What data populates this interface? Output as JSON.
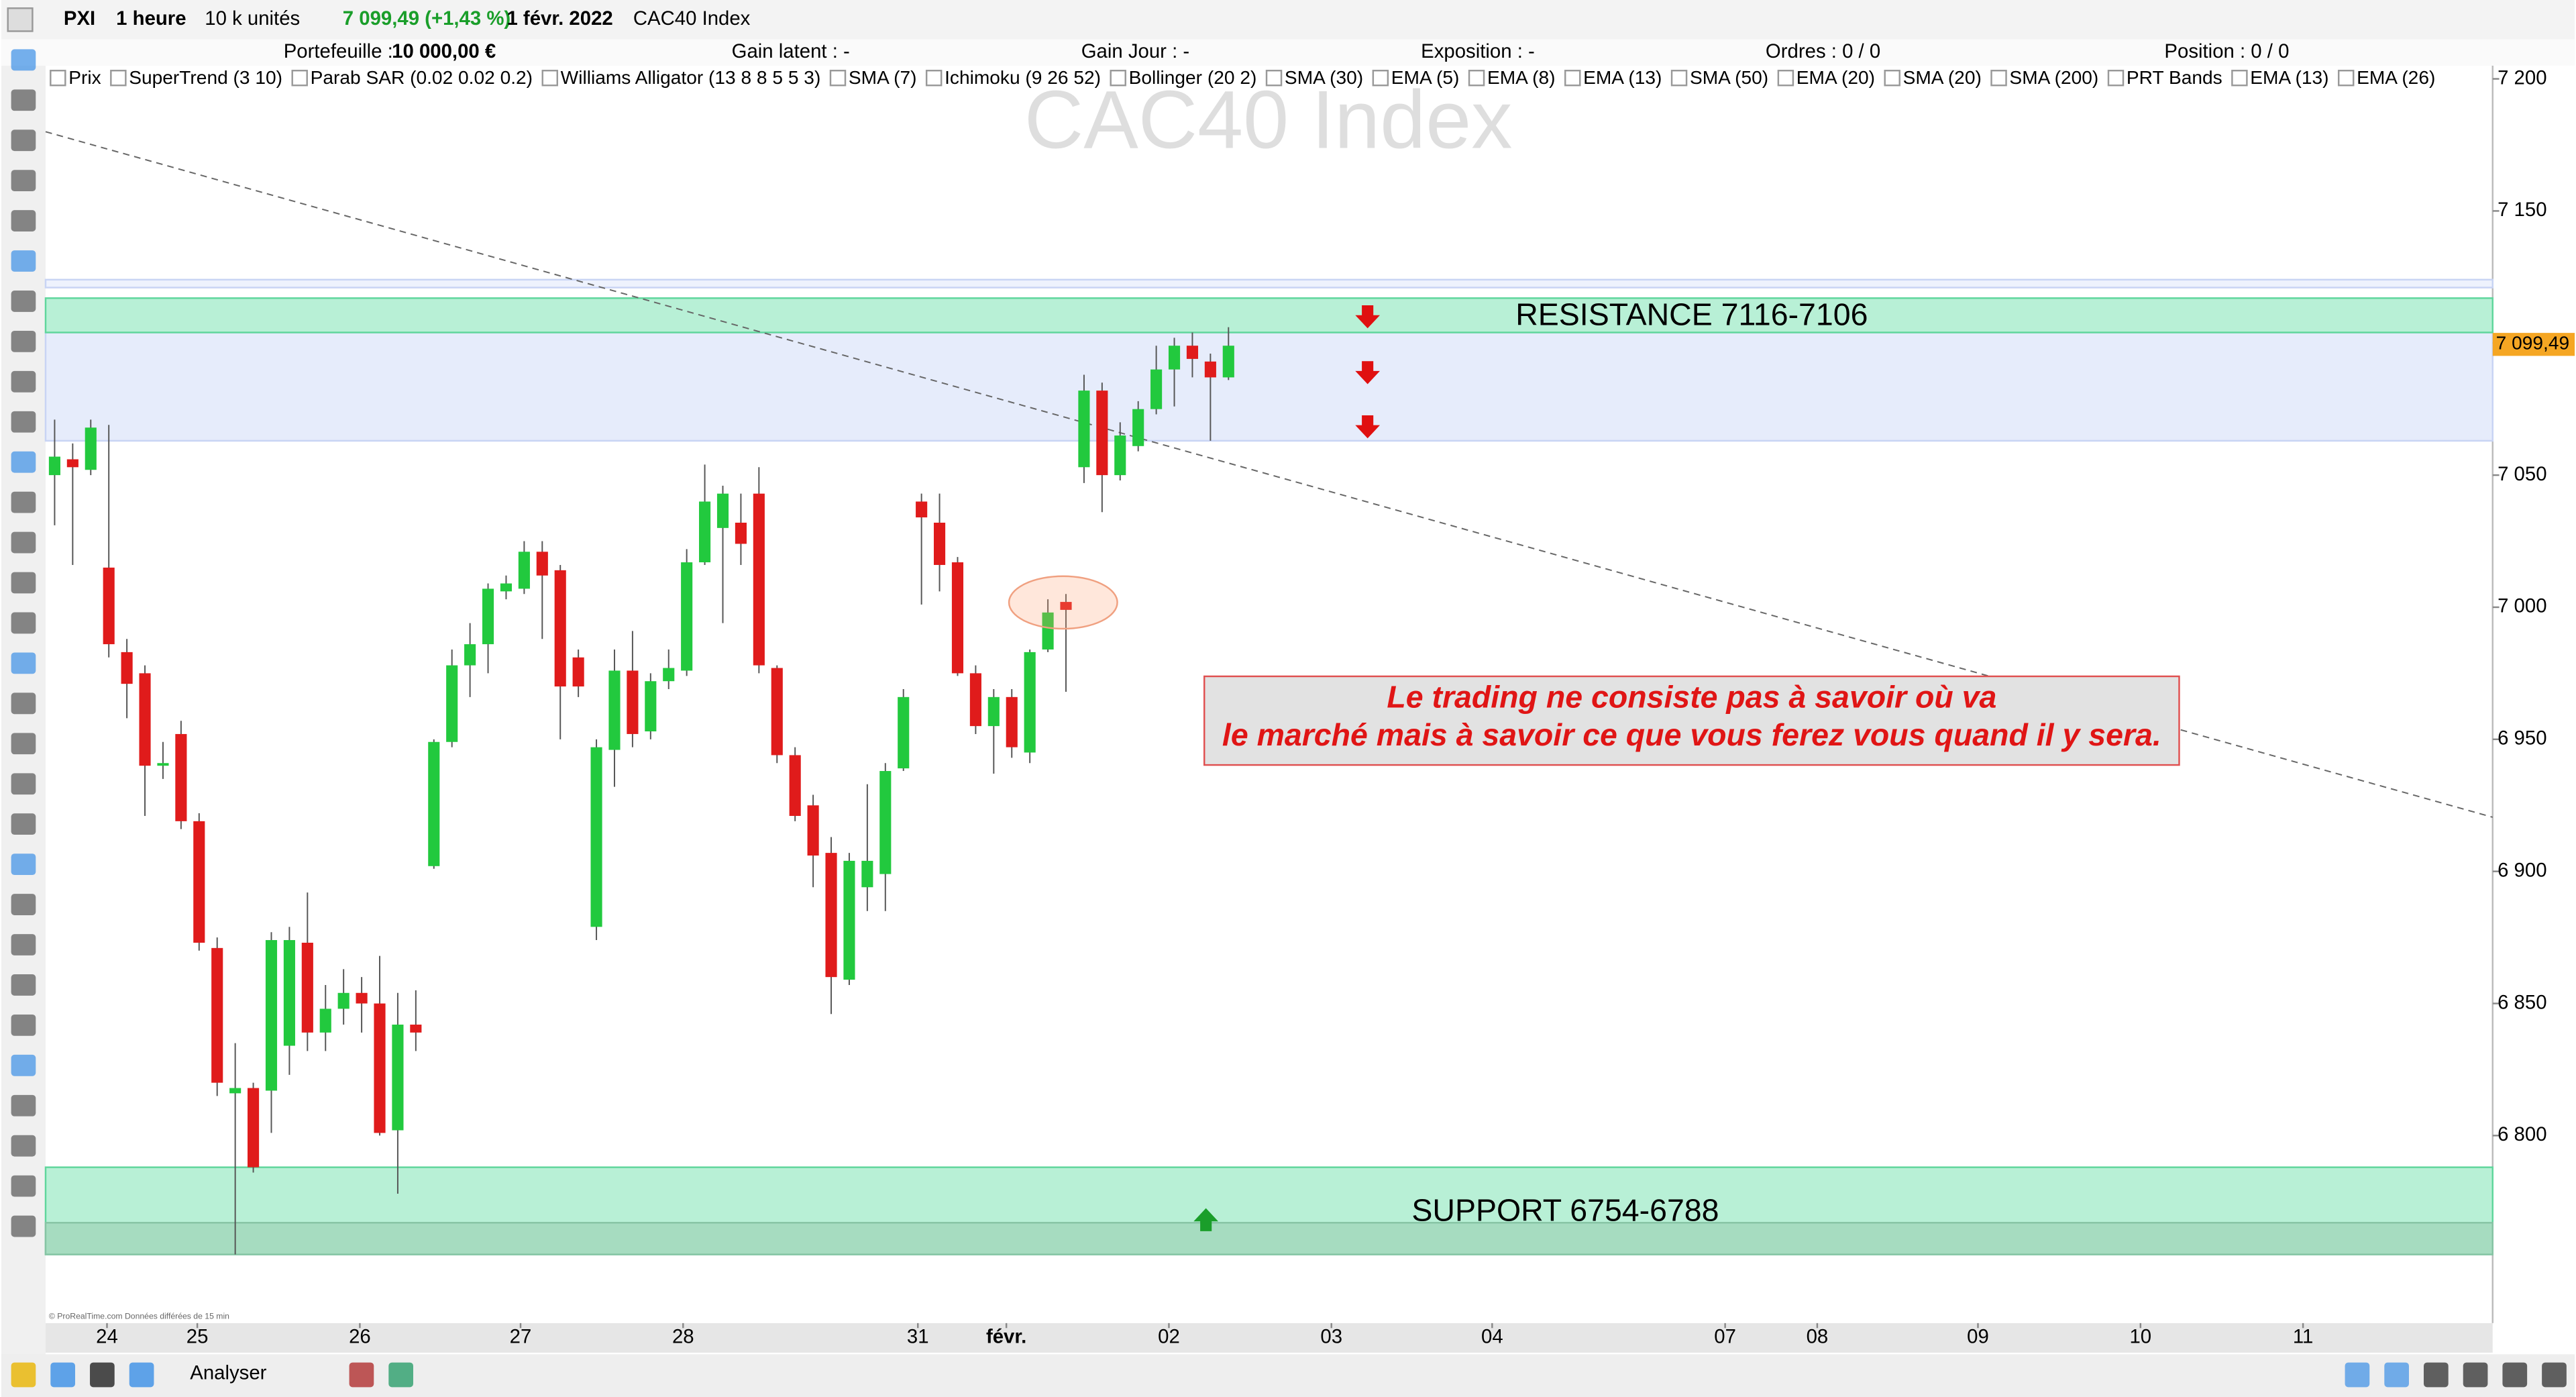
{
  "toolbar": {
    "symbol": "PXI",
    "interval": "1 heure",
    "quantity": "10 k unités",
    "quote": "7 099,49 (+1,43 %)",
    "date": "1 févr. 2022",
    "name": "CAC40 Index"
  },
  "info_bar": [
    {
      "label": "Portefeuille :",
      "value": "10 000,00 €"
    },
    {
      "label": "Gain latent : -"
    },
    {
      "label": "Gain Jour : -"
    },
    {
      "label": "Exposition : -"
    },
    {
      "label": "Ordres : 0 / 0"
    },
    {
      "label": "Position : 0 / 0"
    }
  ],
  "indicators": [
    "Prix",
    "SuperTrend (3 10)",
    "Parab SAR (0.02 0.02 0.2)",
    "Williams Alligator (13 8 8 5 5 3)",
    "SMA (7)",
    "Ichimoku (9 26 52)",
    "Bollinger (20 2)",
    "SMA (30)",
    "EMA (5)",
    "EMA (8)",
    "EMA (13)",
    "SMA (50)",
    "EMA (20)",
    "SMA (20)",
    "SMA (200)",
    "PRT Bands",
    "EMA (13)",
    "EMA (26)"
  ],
  "bottom_bar": {
    "analyse": "Analyser"
  },
  "credit": "© ProRealTime.com Données différées de 15 min",
  "chart_data": {
    "type": "candlestick",
    "watermark": "CAC40 Index",
    "up_color": "#22c93e",
    "down_color": "#e01b1b",
    "open": [
      7050,
      7056,
      7052,
      7015,
      6983,
      6975,
      6940,
      6952,
      6919,
      6871,
      6816,
      6818,
      6817,
      6834,
      6873,
      6839,
      6848,
      6854,
      6850,
      6802,
      6842,
      6902,
      6949,
      6978,
      6986,
      7006,
      7007,
      7021,
      7014,
      6981,
      6879,
      6946,
      6976,
      6953,
      6972,
      6976,
      7017,
      7030,
      7032,
      7043,
      6977,
      6944,
      6925,
      6907,
      6859,
      6894,
      6899,
      6939,
      7040,
      7032,
      7017,
      6975,
      6955,
      6966,
      6945,
      6984,
      7002,
      7053,
      7082,
      7050,
      7061,
      7075,
      7090,
      7099,
      7093,
      7087
    ],
    "high": [
      7071,
      7062,
      7071,
      7069,
      6988,
      6978,
      6949,
      6957,
      6922,
      6875,
      6835,
      6820,
      6877,
      6879,
      6892,
      6857,
      6863,
      6860,
      6868,
      6854,
      6855,
      6950,
      6984,
      6994,
      7009,
      7012,
      7025,
      7025,
      7016,
      6984,
      6950,
      6984,
      6991,
      6975,
      6984,
      7022,
      7054,
      7046,
      7043,
      7053,
      6978,
      6947,
      6929,
      6913,
      6907,
      6933,
      6941,
      6969,
      7043,
      7043,
      7019,
      6978,
      6969,
      6969,
      6984,
      7003,
      7005,
      7088,
      7085,
      7070,
      7078,
      7099,
      7102,
      7104,
      7096,
      7106
    ],
    "low": [
      7031,
      7016,
      7050,
      6981,
      6958,
      6921,
      6935,
      6916,
      6870,
      6815,
      6755,
      6786,
      6801,
      6823,
      6832,
      6832,
      6842,
      6839,
      6800,
      6778,
      6832,
      6901,
      6947,
      6966,
      6975,
      7003,
      7005,
      6988,
      6950,
      6966,
      6874,
      6932,
      6947,
      6950,
      6969,
      6974,
      7016,
      6994,
      7016,
      6975,
      6941,
      6919,
      6894,
      6846,
      6857,
      6885,
      6885,
      6938,
      7001,
      7006,
      6974,
      6952,
      6937,
      6943,
      6941,
      6983,
      6968,
      7047,
      7036,
      7048,
      7059,
      7073,
      7076,
      7087,
      7063,
      7086
    ],
    "close": [
      7057,
      7053,
      7068,
      6986,
      6971,
      6940,
      6941,
      6919,
      6873,
      6820,
      6818,
      6788,
      6874,
      6874,
      6839,
      6848,
      6854,
      6850,
      6801,
      6842,
      6839,
      6949,
      6978,
      6986,
      7007,
      7009,
      7021,
      7012,
      6970,
      6970,
      6947,
      6976,
      6952,
      6972,
      6977,
      7017,
      7040,
      7043,
      7024,
      6978,
      6944,
      6921,
      6906,
      6860,
      6904,
      6904,
      6938,
      6966,
      7034,
      7016,
      6975,
      6955,
      6966,
      6947,
      6983,
      6998,
      6999,
      7082,
      7050,
      7065,
      7075,
      7090,
      7099,
      7094,
      7087,
      7099
    ],
    "xlim": [
      -0.5,
      135
    ],
    "xticks": [
      {
        "value": 2.9,
        "label": "24"
      },
      {
        "value": 7.9,
        "label": "25"
      },
      {
        "value": 16.9,
        "label": "26"
      },
      {
        "value": 25.8,
        "label": "27"
      },
      {
        "value": 34.8,
        "label": "28"
      },
      {
        "value": 47.8,
        "label": "31"
      },
      {
        "value": 52.7,
        "label": "févr."
      },
      {
        "value": 61.7,
        "label": "02"
      },
      {
        "value": 70.7,
        "label": "03"
      },
      {
        "value": 79.6,
        "label": "04"
      },
      {
        "value": 92.5,
        "label": "07"
      },
      {
        "value": 97.6,
        "label": "08"
      },
      {
        "value": 106.5,
        "label": "09"
      },
      {
        "value": 115.5,
        "label": "10"
      },
      {
        "value": 124.5,
        "label": "11"
      }
    ],
    "ylim": [
      6729,
      7205
    ],
    "yticks": [
      {
        "value": 6800,
        "label": "6 800"
      },
      {
        "value": 6850,
        "label": "6 850"
      },
      {
        "value": 6900,
        "label": "6 900"
      },
      {
        "value": 6950,
        "label": "6 950"
      },
      {
        "value": 7000,
        "label": "7 000"
      },
      {
        "value": 7050,
        "label": "7 050"
      },
      {
        "value": 7100,
        "label": "7 100"
      },
      {
        "value": 7150,
        "label": "7 150"
      },
      {
        "value": 7200,
        "label": "7 200"
      }
    ],
    "grid": false,
    "last_price": 7099.49,
    "last_price_label": "7 099,49",
    "zones": [
      {
        "from": 7063,
        "to": 7104,
        "color": "#e6ecfb",
        "border": "#c8d4f4"
      },
      {
        "from": 7104,
        "to": 7117,
        "color": "#b8f0d6",
        "border": "#5fd69c",
        "label": "RESISTANCE  7116-7106"
      },
      {
        "from": 6755,
        "to": 6788,
        "color": "#b8f0d6",
        "border": "#5fd69c",
        "label": "SUPPORT 6754-6788"
      },
      {
        "from": 6755,
        "to": 6767,
        "color": "#a6dcc0",
        "border": "#86c4a4"
      },
      {
        "from": 7121,
        "to": 7124,
        "color": "#eef2fd",
        "border": "#c8d4f4"
      }
    ],
    "trendline": {
      "from": [
        -0.5,
        7180
      ],
      "to": [
        135,
        6920.5
      ]
    },
    "quote": [
      "Le trading ne consiste pas à savoir où va",
      "le marché mais à savoir ce que vous ferez vous quand il y sera."
    ]
  }
}
